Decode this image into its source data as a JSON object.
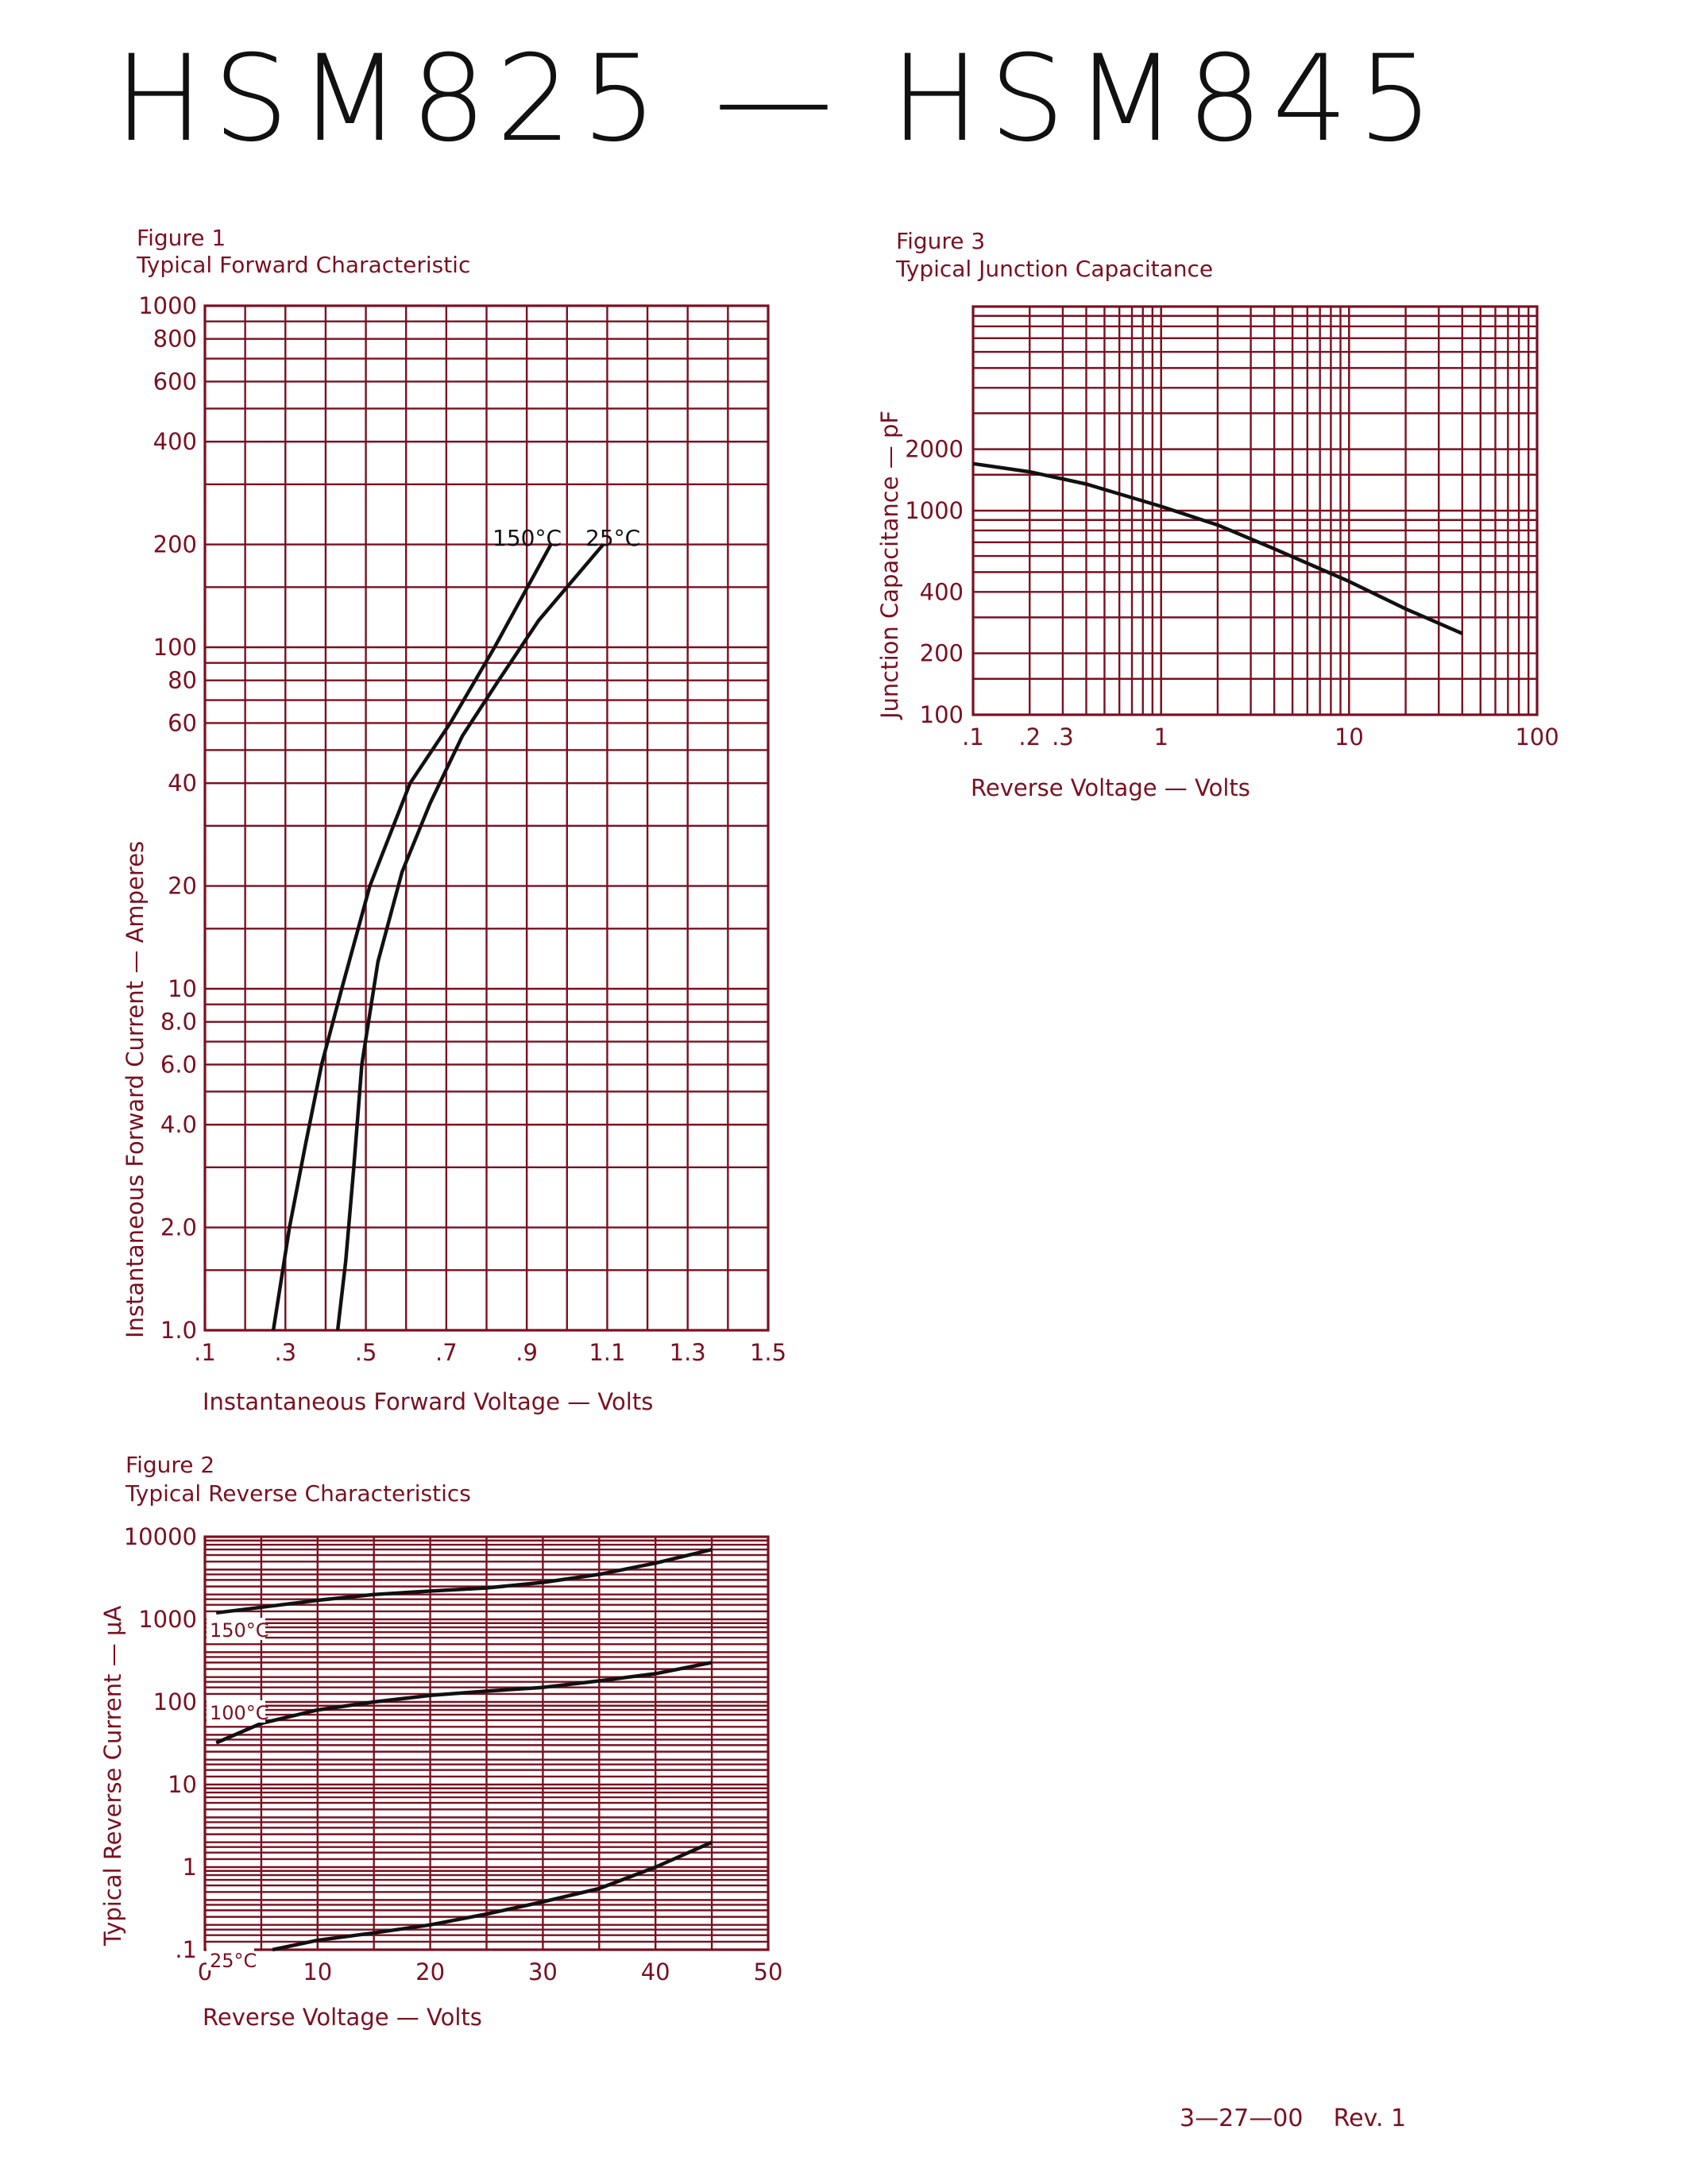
{
  "title": "HSM825 — HSM845",
  "revision": "3—27—00    Rev. 1",
  "chart_data": [
    {
      "id": "fig1",
      "type": "line",
      "figure_label": "Figure 1",
      "title": "Typical Forward Characteristic",
      "xlabel": "Instantaneous Forward Voltage — Volts",
      "ylabel": "Instantaneous Forward Current — Amperes",
      "xscale": "linear",
      "yscale": "log",
      "xlim": [
        0.1,
        1.5
      ],
      "ylim": [
        1,
        1000
      ],
      "xticks": [
        0.1,
        0.3,
        0.5,
        0.7,
        0.9,
        1.1,
        1.3,
        1.5
      ],
      "xtick_labels": [
        ".1",
        ".3",
        ".5",
        ".7",
        ".9",
        "1.1",
        "1.3",
        "1.5"
      ],
      "yticks": [
        1,
        2,
        4,
        6,
        8,
        10,
        20,
        40,
        60,
        80,
        100,
        200,
        400,
        600,
        800,
        1000
      ],
      "ytick_labels": [
        "1.0",
        "2.0",
        "4.0",
        "6.0",
        "8.0",
        "10",
        "20",
        "40",
        "60",
        "80",
        "100",
        "200",
        "400",
        "600",
        "800",
        "1000"
      ],
      "grid": true,
      "series": [
        {
          "name": "150°C",
          "x": [
            0.27,
            0.31,
            0.35,
            0.39,
            0.44,
            0.51,
            0.61,
            0.71,
            0.82,
            0.96
          ],
          "y": [
            1.0,
            2.0,
            3.5,
            6.0,
            10,
            20,
            40,
            60,
            100,
            200
          ]
        },
        {
          "name": "25°C",
          "x": [
            0.43,
            0.45,
            0.47,
            0.49,
            0.53,
            0.59,
            0.66,
            0.74,
            0.83,
            0.93,
            1.09
          ],
          "y": [
            1.0,
            1.6,
            3.0,
            6.0,
            12,
            22,
            35,
            55,
            80,
            120,
            200
          ]
        }
      ]
    },
    {
      "id": "fig2",
      "type": "line",
      "figure_label": "Figure 2",
      "title": "Typical Reverse Characteristics",
      "xlabel": "Reverse Voltage — Volts",
      "ylabel": "Typical Reverse Current — μA",
      "xscale": "linear",
      "yscale": "log",
      "xlim": [
        0,
        50
      ],
      "ylim": [
        0.1,
        10000
      ],
      "xticks": [
        0,
        10,
        20,
        30,
        40,
        50
      ],
      "xtick_labels": [
        "0",
        "10",
        "20",
        "30",
        "40",
        "50"
      ],
      "yticks": [
        0.1,
        1,
        10,
        100,
        1000,
        10000
      ],
      "ytick_labels": [
        ".1",
        "1",
        "10",
        "100",
        "1000",
        "10000"
      ],
      "grid": true,
      "series": [
        {
          "name": "150°C",
          "x": [
            1,
            5,
            10,
            15,
            20,
            25,
            30,
            35,
            40,
            45
          ],
          "y": [
            1200,
            1400,
            1700,
            2000,
            2200,
            2400,
            2800,
            3500,
            4800,
            7000
          ]
        },
        {
          "name": "100°C",
          "x": [
            1,
            5,
            10,
            15,
            20,
            25,
            30,
            35,
            40,
            45
          ],
          "y": [
            32,
            55,
            80,
            100,
            120,
            135,
            150,
            180,
            220,
            300
          ]
        },
        {
          "name": "25°C",
          "x": [
            6,
            10,
            15,
            20,
            25,
            30,
            35,
            40,
            45
          ],
          "y": [
            0.1,
            0.13,
            0.16,
            0.2,
            0.27,
            0.38,
            0.55,
            1.0,
            2.0
          ]
        }
      ]
    },
    {
      "id": "fig3",
      "type": "line",
      "figure_label": "Figure 3",
      "title": "Typical Junction Capacitance",
      "xlabel": "Reverse Voltage — Volts",
      "ylabel": "Junction Capacitance — pF",
      "xscale": "log",
      "yscale": "log",
      "xlim": [
        0.1,
        100
      ],
      "ylim": [
        100,
        10000
      ],
      "xticks": [
        0.1,
        0.2,
        0.3,
        1,
        10,
        100
      ],
      "xtick_labels": [
        ".1",
        ".2",
        ".3",
        "1",
        "10",
        "100"
      ],
      "yticks": [
        100,
        200,
        400,
        1000,
        2000
      ],
      "ytick_labels": [
        "100",
        "200",
        "400",
        "1000",
        "2000"
      ],
      "grid": true,
      "series": [
        {
          "name": "",
          "x": [
            0.1,
            0.2,
            0.4,
            1,
            2,
            4,
            10,
            20,
            40
          ],
          "y": [
            1700,
            1550,
            1350,
            1050,
            850,
            650,
            450,
            330,
            250
          ]
        }
      ]
    }
  ]
}
